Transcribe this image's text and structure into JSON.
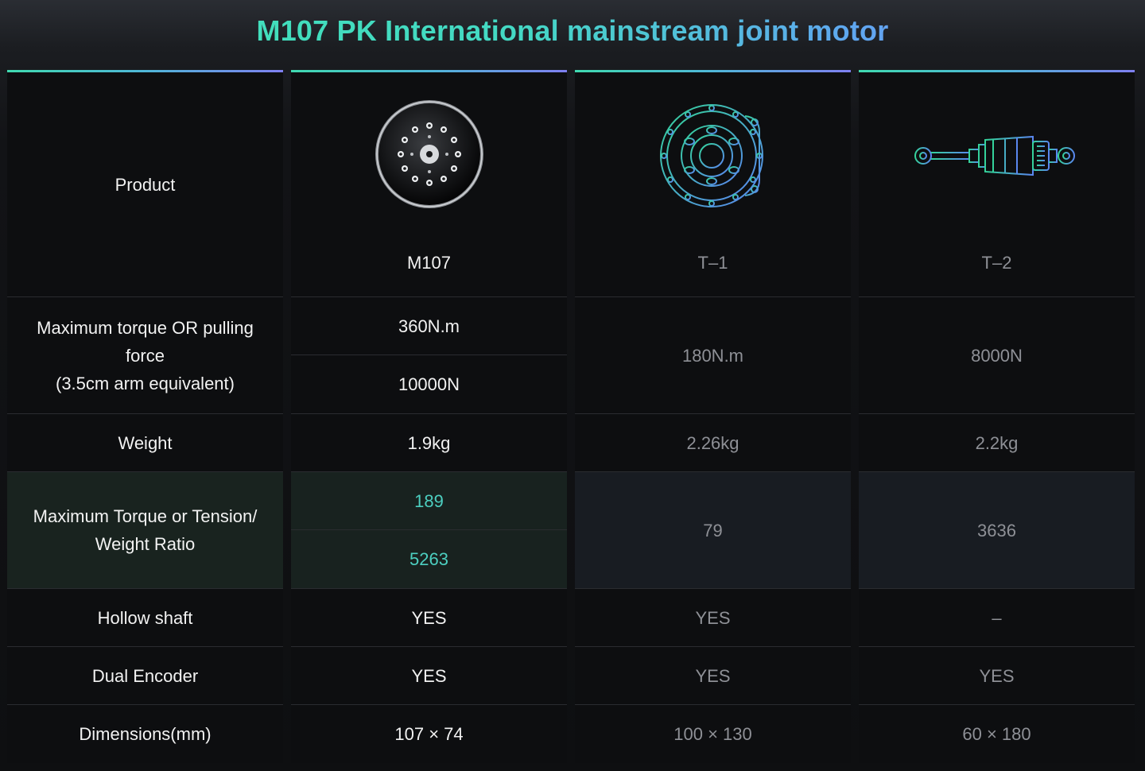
{
  "title": "M107 PK International mainstream joint motor",
  "columns": {
    "labels": {
      "product": "Product",
      "torque": "Maximum torque OR pulling force\n(3.5cm arm equivalent)",
      "torque_line1": "Maximum torque OR pulling",
      "torque_line2": "force",
      "torque_line3": "(3.5cm arm equivalent)",
      "weight": "Weight",
      "ratio_line1": "Maximum Torque or Tension/",
      "ratio_line2": "Weight Ratio",
      "hollow": "Hollow shaft",
      "encoder": "Dual Encoder",
      "dimensions": "Dimensions(mm)"
    },
    "m107": {
      "name": "M107",
      "torque": "360N.m",
      "force": "10000N",
      "weight": "1.9kg",
      "ratio_torque": "189",
      "ratio_force": "5263",
      "hollow": "YES",
      "encoder": "YES",
      "dimensions": "107 × 74"
    },
    "t1": {
      "name": "T–1",
      "torque": "180N.m",
      "weight": "2.26kg",
      "ratio": "79",
      "hollow": "YES",
      "encoder": "YES",
      "dimensions": "100 × 130"
    },
    "t2": {
      "name": "T–2",
      "force": "8000N",
      "weight": "2.2kg",
      "ratio": "3636",
      "hollow": "–",
      "encoder": "YES",
      "dimensions": "60 × 180"
    }
  },
  "colors": {
    "accent_teal": "#4ccfc0",
    "title_gradient_start": "#3fe3b4",
    "title_gradient_end": "#8a8cf5"
  }
}
